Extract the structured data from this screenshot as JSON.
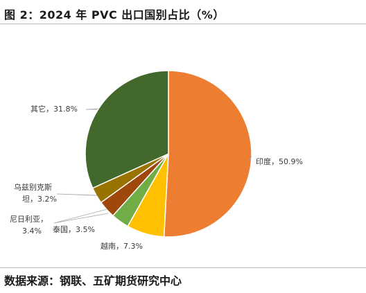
{
  "figure": {
    "title": "图 2：2024 年 PVC 出口国别占比（%）",
    "source": "数据来源：钢联、五矿期货研究中心"
  },
  "chart_data": {
    "type": "pie",
    "title": "",
    "slices": [
      {
        "label": "印度",
        "value": 50.9,
        "display": "50.9%",
        "color": "#ED7D31"
      },
      {
        "label": "越南",
        "value": 7.3,
        "display": "7.3%",
        "color": "#FFC000"
      },
      {
        "label": "泰国",
        "value": 3.5,
        "display": "3.5%",
        "color": "#70AD47"
      },
      {
        "label": "尼日利亚",
        "value": 3.4,
        "display": "3.4%",
        "color": "#9E480E"
      },
      {
        "label": "乌兹别克斯坦",
        "value": 3.2,
        "display": "3.2%",
        "color": "#997300"
      },
      {
        "label": "其它",
        "value": 31.8,
        "display": "31.8%",
        "color": "#43682B"
      }
    ],
    "start_angle_deg": 0,
    "direction": "clockwise",
    "legend": "none",
    "data_labels": "outside with leader lines"
  }
}
